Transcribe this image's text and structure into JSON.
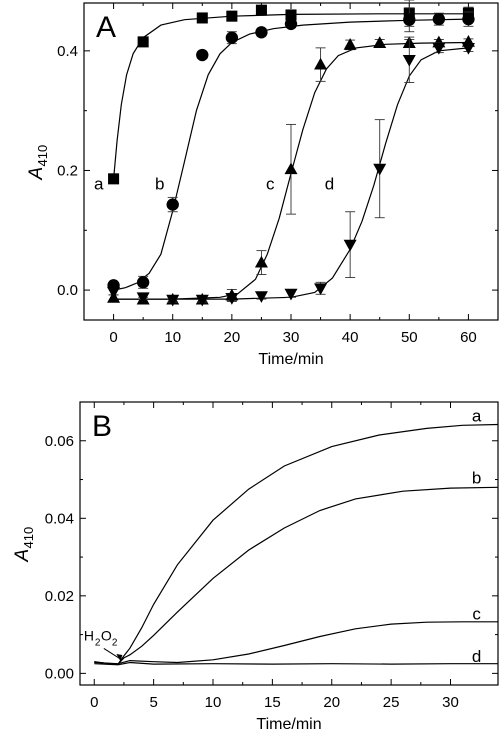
{
  "chart_data": [
    {
      "type": "scatter",
      "panel_label": "A",
      "xlabel": "Time/min",
      "ylabel_main": "A",
      "ylabel_sub": "410",
      "xlim": [
        -5,
        65
      ],
      "ylim": [
        -0.05,
        0.48
      ],
      "xticks": [
        0,
        10,
        20,
        30,
        40,
        50,
        60
      ],
      "yticks": [
        0.0,
        0.2,
        0.4
      ],
      "ytick_labels": [
        "0.0",
        "0.2",
        "0.4"
      ],
      "grid": false,
      "series": [
        {
          "name": "a",
          "marker": "square",
          "points": [
            [
              0,
              0.186
            ],
            [
              5,
              0.415
            ],
            [
              15,
              0.455
            ],
            [
              20,
              0.458
            ],
            [
              25,
              0.468
            ],
            [
              30,
              0.46
            ],
            [
              50,
              0.463
            ],
            [
              60,
              0.463
            ]
          ],
          "errors": [
            [
              0,
              0
            ],
            [
              5,
              0.005
            ],
            [
              15,
              0.006
            ],
            [
              20,
              0.005
            ],
            [
              25,
              0.004
            ],
            [
              30,
              0.008
            ],
            [
              50,
              0.022
            ],
            [
              60,
              0.01
            ]
          ],
          "curve": [
            [
              0,
              0.186
            ],
            [
              0.6,
              0.25
            ],
            [
              1.3,
              0.31
            ],
            [
              2.2,
              0.36
            ],
            [
              3.3,
              0.395
            ],
            [
              5,
              0.422
            ],
            [
              8,
              0.443
            ],
            [
              12,
              0.452
            ],
            [
              20,
              0.458
            ],
            [
              30,
              0.461
            ],
            [
              45,
              0.462
            ],
            [
              60,
              0.462
            ]
          ]
        },
        {
          "name": "b",
          "marker": "circle",
          "points": [
            [
              0,
              0.008
            ],
            [
              5,
              0.013
            ],
            [
              10,
              0.143
            ],
            [
              15,
              0.393
            ],
            [
              20,
              0.422
            ],
            [
              25,
              0.431
            ],
            [
              30,
              0.445
            ],
            [
              50,
              0.452
            ],
            [
              55,
              0.453
            ],
            [
              60,
              0.453
            ]
          ],
          "errors": [
            [
              0,
              0.005
            ],
            [
              5,
              0.01
            ],
            [
              10,
              0.012
            ],
            [
              15,
              0.005
            ],
            [
              20,
              0.01
            ],
            [
              25,
              0.006
            ],
            [
              30,
              0.006
            ],
            [
              50,
              0.02
            ],
            [
              55,
              0.01
            ],
            [
              60,
              0.012
            ]
          ],
          "curve": [
            [
              0,
              0.0
            ],
            [
              2,
              0.004
            ],
            [
              4,
              0.012
            ],
            [
              6,
              0.028
            ],
            [
              8,
              0.06
            ],
            [
              10,
              0.132
            ],
            [
              12,
              0.215
            ],
            [
              14,
              0.3
            ],
            [
              16,
              0.36
            ],
            [
              18,
              0.395
            ],
            [
              20,
              0.414
            ],
            [
              23,
              0.428
            ],
            [
              27,
              0.437
            ],
            [
              32,
              0.443
            ],
            [
              40,
              0.448
            ],
            [
              50,
              0.451
            ],
            [
              60,
              0.453
            ]
          ]
        },
        {
          "name": "c",
          "marker": "triangle-up",
          "points": [
            [
              0,
              -0.013
            ],
            [
              5,
              -0.016
            ],
            [
              10,
              -0.016
            ],
            [
              15,
              -0.016
            ],
            [
              20,
              -0.009
            ],
            [
              25,
              0.046
            ],
            [
              30,
              0.202
            ],
            [
              35,
              0.377
            ],
            [
              40,
              0.41
            ],
            [
              45,
              0.413
            ],
            [
              50,
              0.413
            ],
            [
              55,
              0.414
            ],
            [
              60,
              0.415
            ]
          ],
          "errors": [
            [
              0,
              0.005
            ],
            [
              5,
              0.004
            ],
            [
              10,
              0.004
            ],
            [
              15,
              0.004
            ],
            [
              20,
              0.01
            ],
            [
              25,
              0.02
            ],
            [
              30,
              0.075
            ],
            [
              35,
              0.028
            ],
            [
              40,
              0.008
            ],
            [
              45,
              0.006
            ],
            [
              50,
              0.006
            ],
            [
              55,
              0.005
            ],
            [
              60,
              0.005
            ]
          ],
          "curve": [
            [
              0,
              -0.015
            ],
            [
              10,
              -0.015
            ],
            [
              18,
              -0.012
            ],
            [
              21,
              -0.006
            ],
            [
              24,
              0.018
            ],
            [
              26,
              0.06
            ],
            [
              28,
              0.12
            ],
            [
              30,
              0.195
            ],
            [
              32,
              0.268
            ],
            [
              34,
              0.33
            ],
            [
              36,
              0.37
            ],
            [
              38,
              0.392
            ],
            [
              41,
              0.405
            ],
            [
              46,
              0.411
            ],
            [
              52,
              0.413
            ],
            [
              60,
              0.414
            ]
          ]
        },
        {
          "name": "d",
          "marker": "triangle-down",
          "points": [
            [
              0,
              -0.003
            ],
            [
              5,
              -0.012
            ],
            [
              10,
              -0.016
            ],
            [
              15,
              -0.016
            ],
            [
              20,
              -0.013
            ],
            [
              25,
              -0.01
            ],
            [
              30,
              -0.006
            ],
            [
              35,
              0.003
            ],
            [
              40,
              0.076
            ],
            [
              45,
              0.203
            ],
            [
              50,
              0.385
            ],
            [
              55,
              0.405
            ],
            [
              60,
              0.405
            ]
          ],
          "errors": [
            [
              0,
              0.005
            ],
            [
              5,
              0.004
            ],
            [
              10,
              0.004
            ],
            [
              15,
              0.004
            ],
            [
              20,
              0.005
            ],
            [
              25,
              0.005
            ],
            [
              30,
              0.006
            ],
            [
              35,
              0.01
            ],
            [
              40,
              0.055
            ],
            [
              45,
              0.082
            ],
            [
              50,
              0.038
            ],
            [
              55,
              0.008
            ],
            [
              60,
              0.006
            ]
          ],
          "curve": [
            [
              0,
              -0.015
            ],
            [
              20,
              -0.015
            ],
            [
              30,
              -0.012
            ],
            [
              34,
              -0.004
            ],
            [
              37,
              0.02
            ],
            [
              40,
              0.068
            ],
            [
              42,
              0.115
            ],
            [
              44,
              0.175
            ],
            [
              46,
              0.245
            ],
            [
              48,
              0.31
            ],
            [
              50,
              0.358
            ],
            [
              52,
              0.385
            ],
            [
              55,
              0.4
            ],
            [
              60,
              0.405
            ]
          ]
        }
      ],
      "curve_labels": [
        {
          "text": "a",
          "x": -2.5,
          "y": 0.178
        },
        {
          "text": "b",
          "x": 7.8,
          "y": 0.178
        },
        {
          "text": "c",
          "x": 26.5,
          "y": 0.178
        },
        {
          "text": "d",
          "x": 36.5,
          "y": 0.178
        }
      ]
    },
    {
      "type": "line",
      "panel_label": "B",
      "xlabel": "Time/min",
      "ylabel_main": "A",
      "ylabel_sub": "410",
      "xlim": [
        -1.2,
        34
      ],
      "ylim": [
        -0.003,
        0.07
      ],
      "xticks": [
        0,
        5,
        10,
        15,
        20,
        25,
        30
      ],
      "yticks": [
        0.0,
        0.02,
        0.04,
        0.06
      ],
      "ytick_labels": [
        "0.00",
        "0.02",
        "0.04",
        "0.06"
      ],
      "grid": false,
      "annotation": {
        "text_main": "H",
        "sub1": "2",
        "mid": "O",
        "sub2": "2",
        "x": 0.3,
        "y": 0.0085,
        "arrow_to": [
          2.2,
          0.0032
        ]
      },
      "series": [
        {
          "name": "a",
          "points": [
            [
              0,
              0.003
            ],
            [
              1,
              0.0026
            ],
            [
              2,
              0.0024
            ],
            [
              2.5,
              0.0045
            ],
            [
              3,
              0.0065
            ],
            [
              4,
              0.0118
            ],
            [
              5,
              0.0178
            ],
            [
              7,
              0.028
            ],
            [
              10,
              0.0395
            ],
            [
              13,
              0.0475
            ],
            [
              16,
              0.0535
            ],
            [
              20,
              0.0585
            ],
            [
              24,
              0.0615
            ],
            [
              28,
              0.0632
            ],
            [
              31,
              0.064
            ],
            [
              34,
              0.0642
            ]
          ]
        },
        {
          "name": "b",
          "points": [
            [
              0,
              0.003
            ],
            [
              1,
              0.0026
            ],
            [
              2,
              0.0024
            ],
            [
              2.5,
              0.004
            ],
            [
              3,
              0.0048
            ],
            [
              4,
              0.007
            ],
            [
              5,
              0.0098
            ],
            [
              7,
              0.0158
            ],
            [
              10,
              0.0245
            ],
            [
              13,
              0.0318
            ],
            [
              16,
              0.0375
            ],
            [
              19,
              0.042
            ],
            [
              22,
              0.045
            ],
            [
              26,
              0.047
            ],
            [
              30,
              0.0478
            ],
            [
              34,
              0.048
            ]
          ]
        },
        {
          "name": "c",
          "points": [
            [
              0,
              0.0028
            ],
            [
              2,
              0.0025
            ],
            [
              3,
              0.0033
            ],
            [
              5,
              0.003
            ],
            [
              7,
              0.0028
            ],
            [
              10,
              0.0035
            ],
            [
              13,
              0.005
            ],
            [
              16,
              0.0072
            ],
            [
              19,
              0.0095
            ],
            [
              22,
              0.0115
            ],
            [
              25,
              0.0127
            ],
            [
              28,
              0.0132
            ],
            [
              31,
              0.0133
            ],
            [
              34,
              0.0133
            ]
          ]
        },
        {
          "name": "d",
          "points": [
            [
              0,
              0.0025
            ],
            [
              2,
              0.0022
            ],
            [
              3,
              0.0028
            ],
            [
              5,
              0.0024
            ],
            [
              10,
              0.0025
            ],
            [
              15,
              0.0024
            ],
            [
              20,
              0.0025
            ],
            [
              25,
              0.0024
            ],
            [
              30,
              0.0025
            ],
            [
              34,
              0.0025
            ]
          ]
        }
      ],
      "curve_labels": [
        {
          "text": "a",
          "x": 32.2,
          "y": 0.0665
        },
        {
          "text": "b",
          "x": 32.2,
          "y": 0.0505
        },
        {
          "text": "c",
          "x": 32.2,
          "y": 0.0155
        },
        {
          "text": "d",
          "x": 32.2,
          "y": 0.0045
        }
      ]
    }
  ]
}
